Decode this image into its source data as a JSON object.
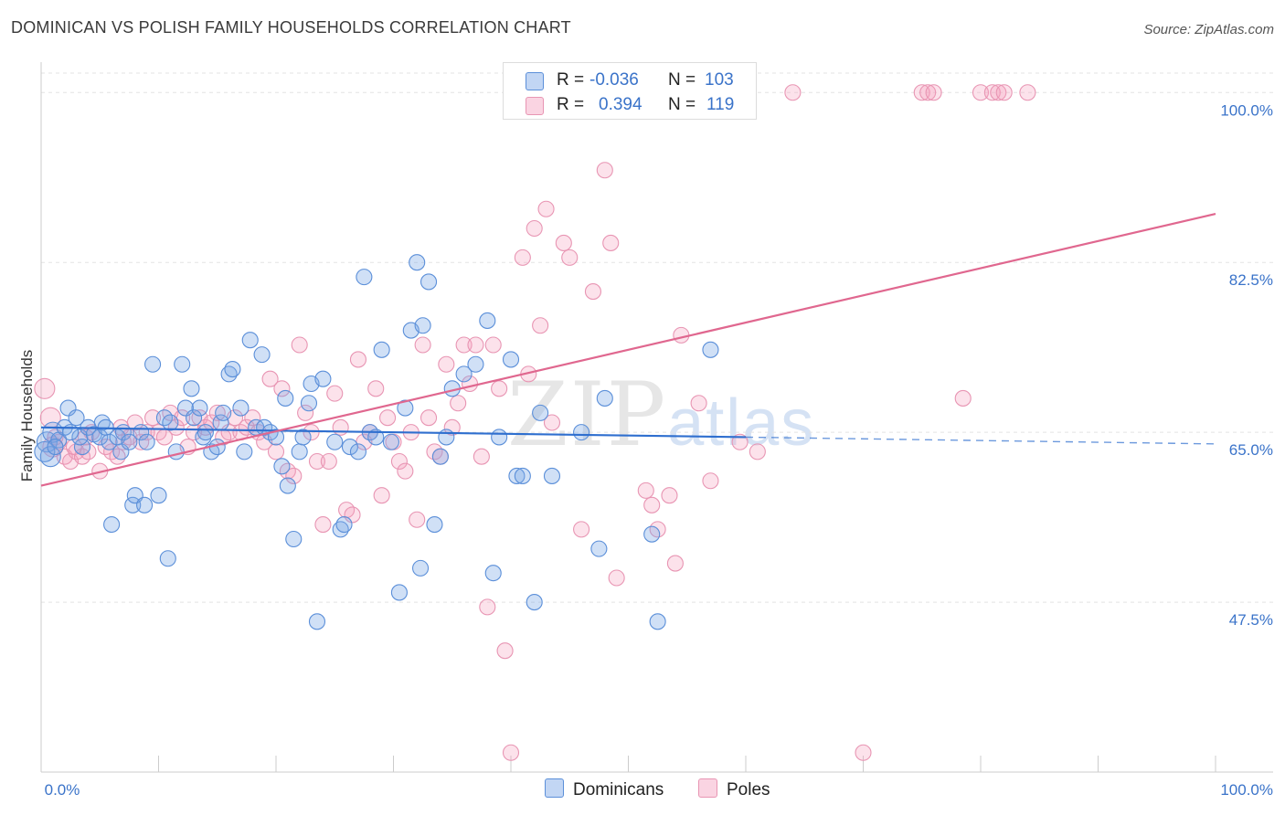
{
  "title": "DOMINICAN VS POLISH FAMILY HOUSEHOLDS CORRELATION CHART",
  "source": "Source: ZipAtlas.com",
  "watermark": {
    "zip": "ZIP",
    "atlas": "atlas"
  },
  "colors": {
    "dominicans_fill": "rgba(120,165,230,0.35)",
    "dominicans_stroke": "#5b8fd9",
    "dominicans_line": "#2f6fcf",
    "poles_fill": "rgba(245,160,190,0.30)",
    "poles_stroke": "#e895b3",
    "poles_line": "#e0678f",
    "axis_text": "#3a73c9",
    "grid": "#e3e3e3"
  },
  "legend": {
    "rows": [
      {
        "r_label": "R =",
        "r_value": "-0.036",
        "n_label": "N =",
        "n_value": "103"
      },
      {
        "r_label": "R =",
        "r_value": "0.394",
        "n_label": "N =",
        "n_value": "119"
      }
    ]
  },
  "bottom_legend": {
    "dominicans": "Dominicans",
    "poles": "Poles"
  },
  "chart_data": {
    "type": "scatter",
    "title": "DOMINICAN VS POLISH FAMILY HOUSEHOLDS CORRELATION CHART",
    "xlabel": "",
    "ylabel": "Family Households",
    "xlim": [
      0,
      100
    ],
    "ylim": [
      30,
      102
    ],
    "x_tick_labels": [
      "0.0%",
      "100.0%"
    ],
    "y_ticks": [
      47.5,
      65.0,
      82.5,
      100.0
    ],
    "y_tick_labels": [
      "47.5%",
      "65.0%",
      "82.5%",
      "100.0%"
    ],
    "grid": true,
    "legend_position": "top-center",
    "series": [
      {
        "name": "Dominicans",
        "R": -0.036,
        "N": 103,
        "trend": {
          "x0": 0,
          "y0": 65.5,
          "x1": 60,
          "y1": 64.5,
          "dashed_to_x": 100,
          "dashed_to_y": 63.8
        },
        "points": [
          [
            0.5,
            64.0
          ],
          [
            0.8,
            62.5
          ],
          [
            1.0,
            65.0
          ],
          [
            1.5,
            64.2
          ],
          [
            2.0,
            65.5
          ],
          [
            2.3,
            67.5
          ],
          [
            3.0,
            66.5
          ],
          [
            3.5,
            63.5
          ],
          [
            3.3,
            64.5
          ],
          [
            4.0,
            65.5
          ],
          [
            4.5,
            64.8
          ],
          [
            5.0,
            64.5
          ],
          [
            5.2,
            66.0
          ],
          [
            5.5,
            65.5
          ],
          [
            5.8,
            64.0
          ],
          [
            6.0,
            55.5
          ],
          [
            6.5,
            64.5
          ],
          [
            6.8,
            63.0
          ],
          [
            7.0,
            65.0
          ],
          [
            7.5,
            64.0
          ],
          [
            7.8,
            57.5
          ],
          [
            8.0,
            58.5
          ],
          [
            8.5,
            65.0
          ],
          [
            8.8,
            57.5
          ],
          [
            9.0,
            64.0
          ],
          [
            9.5,
            72.0
          ],
          [
            10.0,
            58.5
          ],
          [
            10.5,
            66.5
          ],
          [
            10.8,
            52.0
          ],
          [
            11.0,
            66.0
          ],
          [
            11.5,
            63.0
          ],
          [
            12.0,
            72.0
          ],
          [
            12.3,
            67.5
          ],
          [
            12.8,
            69.5
          ],
          [
            13.0,
            66.5
          ],
          [
            13.5,
            67.5
          ],
          [
            13.8,
            64.5
          ],
          [
            14.0,
            65.0
          ],
          [
            14.5,
            63.0
          ],
          [
            15.0,
            63.5
          ],
          [
            15.3,
            66.0
          ],
          [
            15.5,
            67.0
          ],
          [
            16.0,
            71.0
          ],
          [
            16.3,
            71.5
          ],
          [
            17.0,
            67.5
          ],
          [
            17.3,
            63.0
          ],
          [
            17.8,
            74.5
          ],
          [
            18.3,
            65.5
          ],
          [
            18.8,
            73.0
          ],
          [
            19.0,
            65.5
          ],
          [
            19.5,
            65.0
          ],
          [
            20.0,
            64.5
          ],
          [
            20.5,
            61.5
          ],
          [
            20.8,
            68.5
          ],
          [
            21.0,
            59.5
          ],
          [
            21.5,
            54.0
          ],
          [
            22.0,
            63.0
          ],
          [
            22.3,
            64.5
          ],
          [
            22.8,
            68.0
          ],
          [
            23.0,
            70.0
          ],
          [
            23.5,
            45.5
          ],
          [
            24.0,
            70.5
          ],
          [
            25.0,
            64.0
          ],
          [
            25.5,
            55.0
          ],
          [
            25.8,
            55.5
          ],
          [
            26.3,
            63.5
          ],
          [
            27.0,
            63.0
          ],
          [
            27.5,
            81.0
          ],
          [
            28.0,
            65.0
          ],
          [
            28.5,
            64.5
          ],
          [
            29.0,
            73.5
          ],
          [
            29.8,
            64.0
          ],
          [
            30.5,
            48.5
          ],
          [
            31.0,
            67.5
          ],
          [
            31.5,
            75.5
          ],
          [
            32.0,
            82.5
          ],
          [
            32.3,
            51.0
          ],
          [
            32.5,
            76.0
          ],
          [
            33.0,
            80.5
          ],
          [
            33.5,
            55.5
          ],
          [
            34.0,
            62.5
          ],
          [
            34.5,
            64.5
          ],
          [
            35.0,
            69.5
          ],
          [
            36.0,
            71.0
          ],
          [
            37.0,
            72.0
          ],
          [
            38.0,
            76.5
          ],
          [
            38.5,
            50.5
          ],
          [
            39.0,
            64.5
          ],
          [
            40.0,
            72.5
          ],
          [
            40.5,
            60.5
          ],
          [
            41.0,
            60.5
          ],
          [
            42.0,
            47.5
          ],
          [
            42.5,
            67.0
          ],
          [
            43.5,
            60.5
          ],
          [
            46.0,
            65.0
          ],
          [
            47.5,
            53.0
          ],
          [
            48.0,
            68.5
          ],
          [
            52.0,
            54.5
          ],
          [
            52.5,
            45.5
          ],
          [
            57.0,
            73.5
          ],
          [
            0.3,
            63.0
          ],
          [
            1.2,
            63.5
          ],
          [
            2.5,
            65.0
          ]
        ]
      },
      {
        "name": "Poles",
        "R": 0.394,
        "N": 119,
        "trend": {
          "x0": 0,
          "y0": 59.5,
          "x1": 100,
          "y1": 87.5
        },
        "points": [
          [
            0.3,
            69.5
          ],
          [
            0.8,
            66.5
          ],
          [
            1.0,
            63.5
          ],
          [
            1.5,
            64.0
          ],
          [
            2.0,
            62.5
          ],
          [
            2.5,
            62.0
          ],
          [
            3.0,
            63.0
          ],
          [
            3.5,
            62.5
          ],
          [
            4.0,
            63.0
          ],
          [
            4.3,
            65.0
          ],
          [
            5.0,
            61.0
          ],
          [
            5.5,
            63.5
          ],
          [
            6.0,
            63.0
          ],
          [
            6.5,
            62.5
          ],
          [
            7.0,
            64.0
          ],
          [
            7.5,
            64.5
          ],
          [
            8.0,
            66.0
          ],
          [
            8.5,
            64.0
          ],
          [
            9.0,
            65.0
          ],
          [
            9.5,
            66.5
          ],
          [
            10.0,
            65.0
          ],
          [
            10.5,
            64.5
          ],
          [
            11.0,
            67.0
          ],
          [
            11.5,
            65.5
          ],
          [
            12.0,
            66.5
          ],
          [
            12.5,
            63.5
          ],
          [
            13.0,
            65.0
          ],
          [
            13.5,
            66.5
          ],
          [
            14.0,
            65.5
          ],
          [
            14.5,
            66.0
          ],
          [
            15.0,
            67.0
          ],
          [
            15.5,
            64.5
          ],
          [
            16.0,
            65.0
          ],
          [
            16.5,
            66.5
          ],
          [
            17.0,
            65.0
          ],
          [
            17.5,
            65.5
          ],
          [
            18.0,
            66.5
          ],
          [
            18.5,
            65.0
          ],
          [
            19.0,
            64.0
          ],
          [
            19.5,
            70.5
          ],
          [
            20.0,
            63.0
          ],
          [
            20.5,
            69.5
          ],
          [
            21.0,
            61.0
          ],
          [
            21.5,
            60.5
          ],
          [
            22.0,
            74.0
          ],
          [
            22.5,
            67.0
          ],
          [
            23.0,
            65.0
          ],
          [
            23.5,
            62.0
          ],
          [
            24.0,
            55.5
          ],
          [
            24.5,
            62.0
          ],
          [
            25.0,
            69.0
          ],
          [
            25.5,
            65.5
          ],
          [
            26.0,
            57.0
          ],
          [
            26.5,
            56.5
          ],
          [
            27.0,
            72.5
          ],
          [
            27.5,
            64.0
          ],
          [
            28.0,
            65.0
          ],
          [
            28.5,
            69.5
          ],
          [
            29.0,
            58.5
          ],
          [
            29.5,
            66.5
          ],
          [
            30.0,
            64.0
          ],
          [
            30.5,
            62.0
          ],
          [
            31.0,
            61.0
          ],
          [
            31.5,
            65.0
          ],
          [
            32.0,
            56.0
          ],
          [
            32.5,
            74.0
          ],
          [
            33.0,
            66.5
          ],
          [
            33.5,
            63.0
          ],
          [
            34.0,
            62.5
          ],
          [
            34.5,
            72.0
          ],
          [
            35.0,
            65.5
          ],
          [
            35.5,
            68.0
          ],
          [
            36.0,
            74.0
          ],
          [
            36.5,
            70.0
          ],
          [
            37.0,
            74.0
          ],
          [
            37.5,
            62.5
          ],
          [
            38.0,
            47.0
          ],
          [
            38.5,
            74.0
          ],
          [
            39.0,
            69.5
          ],
          [
            39.5,
            42.5
          ],
          [
            40.0,
            32.0
          ],
          [
            41.0,
            83.0
          ],
          [
            41.5,
            71.0
          ],
          [
            42.0,
            86.0
          ],
          [
            42.5,
            76.0
          ],
          [
            43.0,
            88.0
          ],
          [
            43.5,
            66.0
          ],
          [
            44.5,
            84.5
          ],
          [
            45.0,
            83.0
          ],
          [
            46.0,
            55.0
          ],
          [
            47.0,
            79.5
          ],
          [
            48.0,
            92.0
          ],
          [
            48.5,
            84.5
          ],
          [
            49.0,
            50.0
          ],
          [
            51.5,
            59.0
          ],
          [
            52.0,
            57.5
          ],
          [
            52.5,
            55.0
          ],
          [
            53.5,
            58.5
          ],
          [
            54.0,
            51.5
          ],
          [
            54.5,
            75.0
          ],
          [
            56.0,
            68.0
          ],
          [
            57.0,
            60.0
          ],
          [
            59.5,
            64.0
          ],
          [
            61.0,
            63.0
          ],
          [
            64.0,
            100.0
          ],
          [
            75.0,
            100.0
          ],
          [
            75.5,
            100.0
          ],
          [
            76.0,
            100.0
          ],
          [
            78.5,
            68.5
          ],
          [
            80.0,
            100.0
          ],
          [
            81.0,
            100.0
          ],
          [
            81.5,
            100.0
          ],
          [
            82.0,
            100.0
          ],
          [
            84.0,
            100.0
          ],
          [
            70.0,
            32.0
          ],
          [
            1.2,
            64.5
          ],
          [
            2.8,
            63.5
          ],
          [
            3.8,
            64.5
          ],
          [
            6.8,
            65.5
          ]
        ]
      }
    ]
  }
}
